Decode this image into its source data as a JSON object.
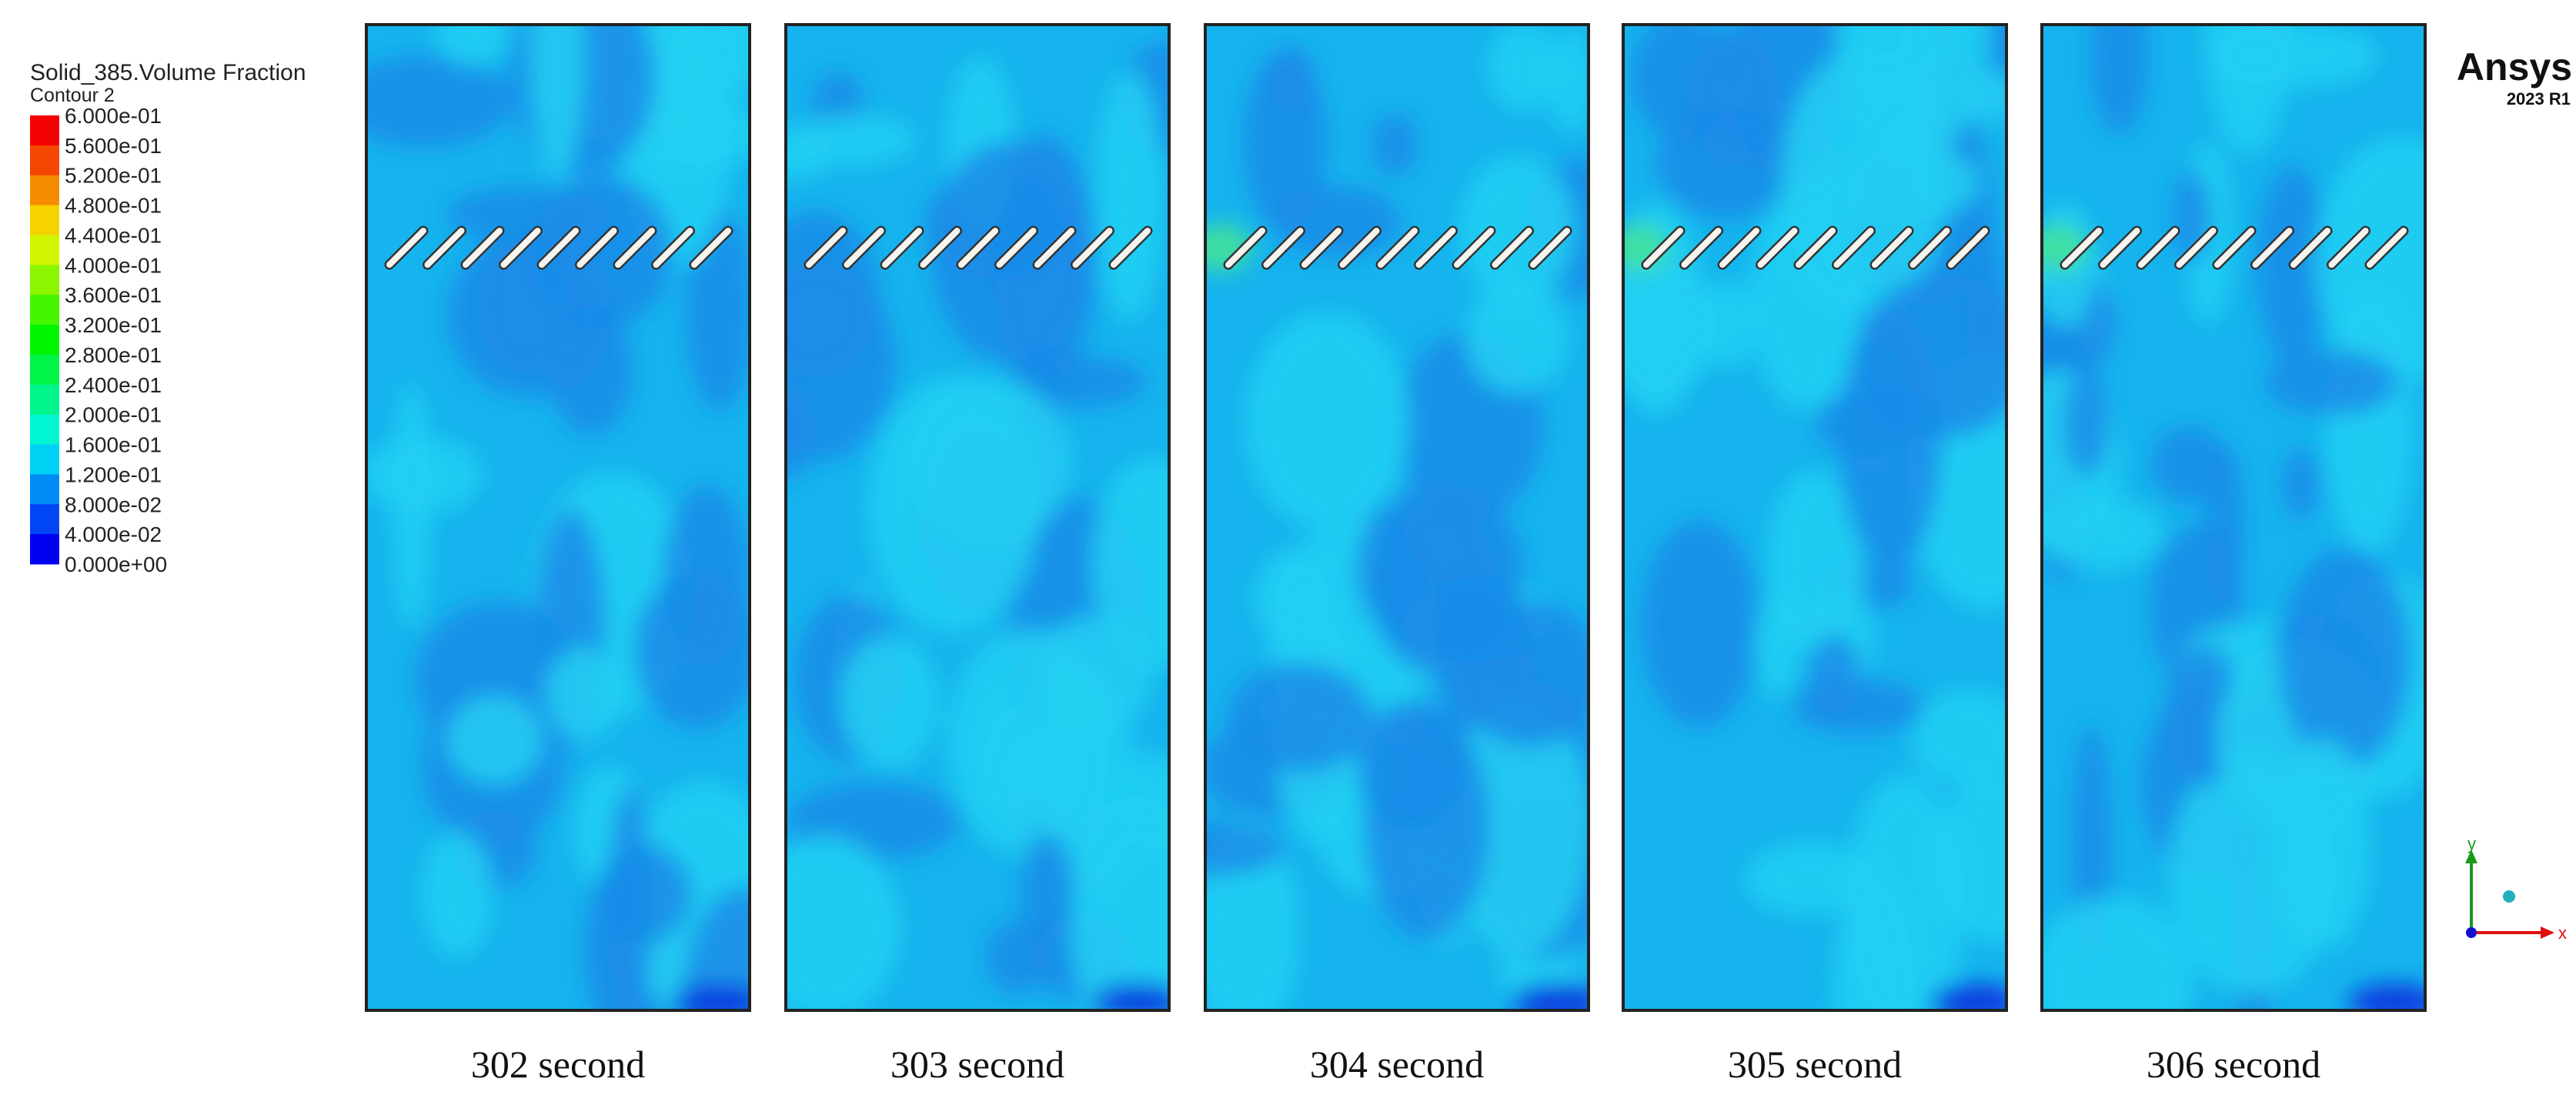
{
  "legend": {
    "title": "Solid_385.Volume Fraction",
    "subtitle": "Contour 2",
    "labels": [
      "6.000e-01",
      "5.600e-01",
      "5.200e-01",
      "4.800e-01",
      "4.400e-01",
      "4.000e-01",
      "3.600e-01",
      "3.200e-01",
      "2.800e-01",
      "2.400e-01",
      "2.000e-01",
      "1.600e-01",
      "1.200e-01",
      "8.000e-02",
      "4.000e-02",
      "0.000e+00"
    ]
  },
  "panels": [
    {
      "label": "302 second"
    },
    {
      "label": "303 second"
    },
    {
      "label": "304 second"
    },
    {
      "label": "305 second"
    },
    {
      "label": "306 second"
    }
  ],
  "logo": {
    "name": "Ansys",
    "version": "2023 R1"
  },
  "triad": {
    "y": "y",
    "x": "x"
  }
}
